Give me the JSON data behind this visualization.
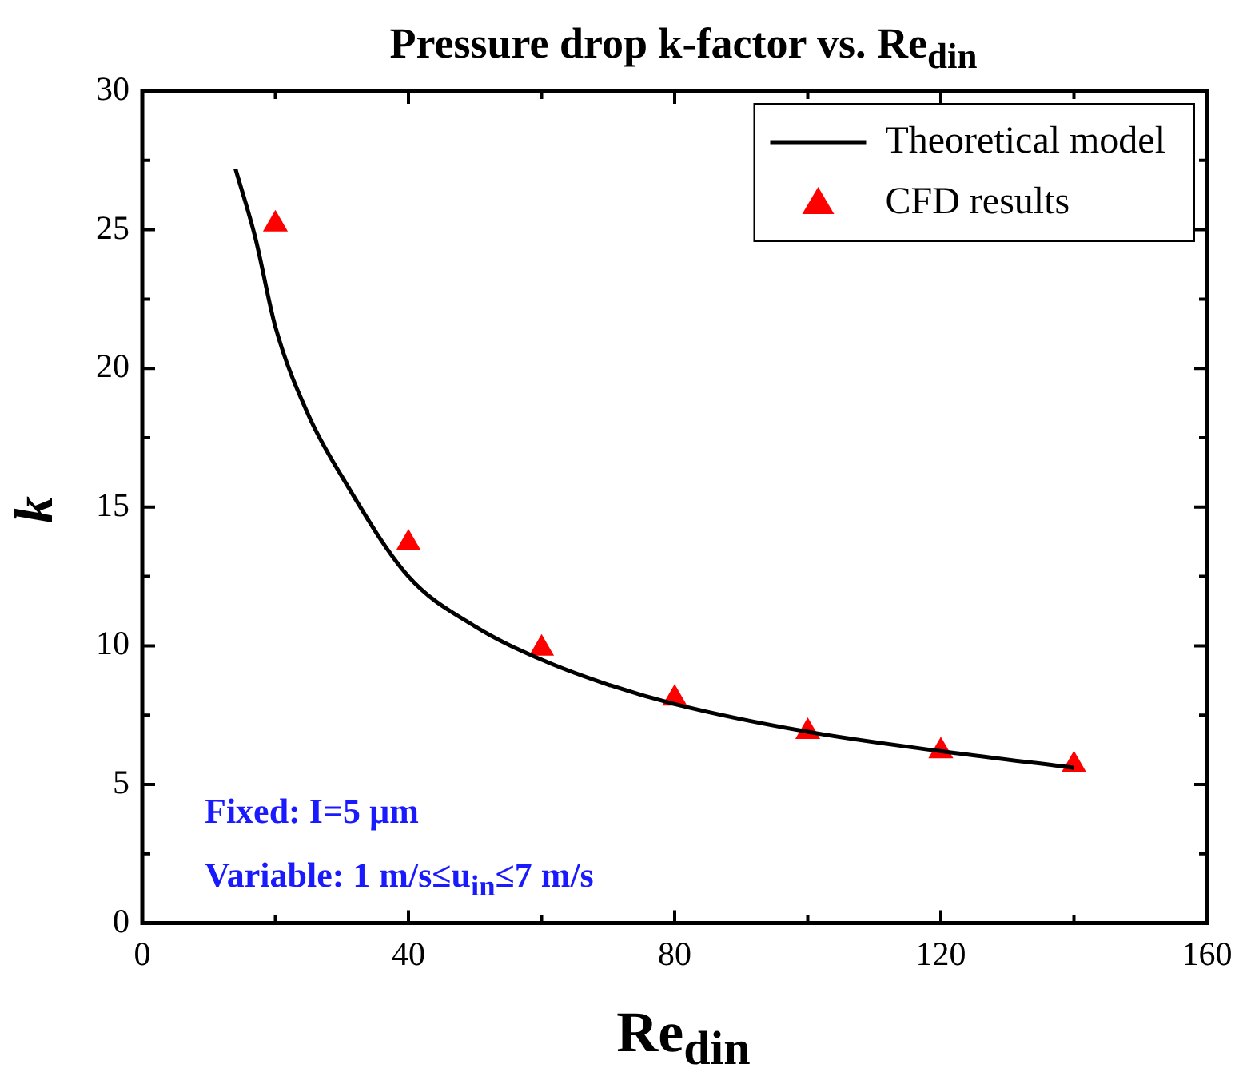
{
  "chart_data": {
    "type": "scatter",
    "title": "Pressure drop k-factor vs. Re$_{din}$",
    "xlabel": "Re$_{din}$",
    "ylabel": "k",
    "xlim": [
      0,
      160
    ],
    "xticks": [
      0,
      40,
      80,
      120,
      160
    ],
    "ylim": [
      0,
      30
    ],
    "yticks": [
      0,
      5,
      10,
      15,
      20,
      25,
      30
    ],
    "grid": false,
    "legend": "top right",
    "series": [
      {
        "name": "Theoretical model",
        "type": "line",
        "color": "#000000",
        "marker": "none",
        "line_style": "solid",
        "x": [
          14,
          17,
          20,
          25,
          30,
          40,
          50,
          60,
          70,
          80,
          100,
          120,
          140
        ],
        "values": [
          27.2,
          24.7,
          21.5,
          18.3,
          16.1,
          12.5,
          10.7,
          9.5,
          8.6,
          7.9,
          6.9,
          6.2,
          5.6
        ]
      },
      {
        "name": "CFD results",
        "type": "scatter",
        "color": "#ff0000",
        "marker": "triangle",
        "x": [
          20,
          40,
          60,
          80,
          100,
          120,
          140
        ],
        "values": [
          25.2,
          13.7,
          9.9,
          8.1,
          6.9,
          6.2,
          5.7
        ]
      }
    ],
    "annotations": [
      "Fixed: I=5 µm",
      "Variable: 1 m/s≤u$_{in}$≤7 m/s"
    ]
  }
}
